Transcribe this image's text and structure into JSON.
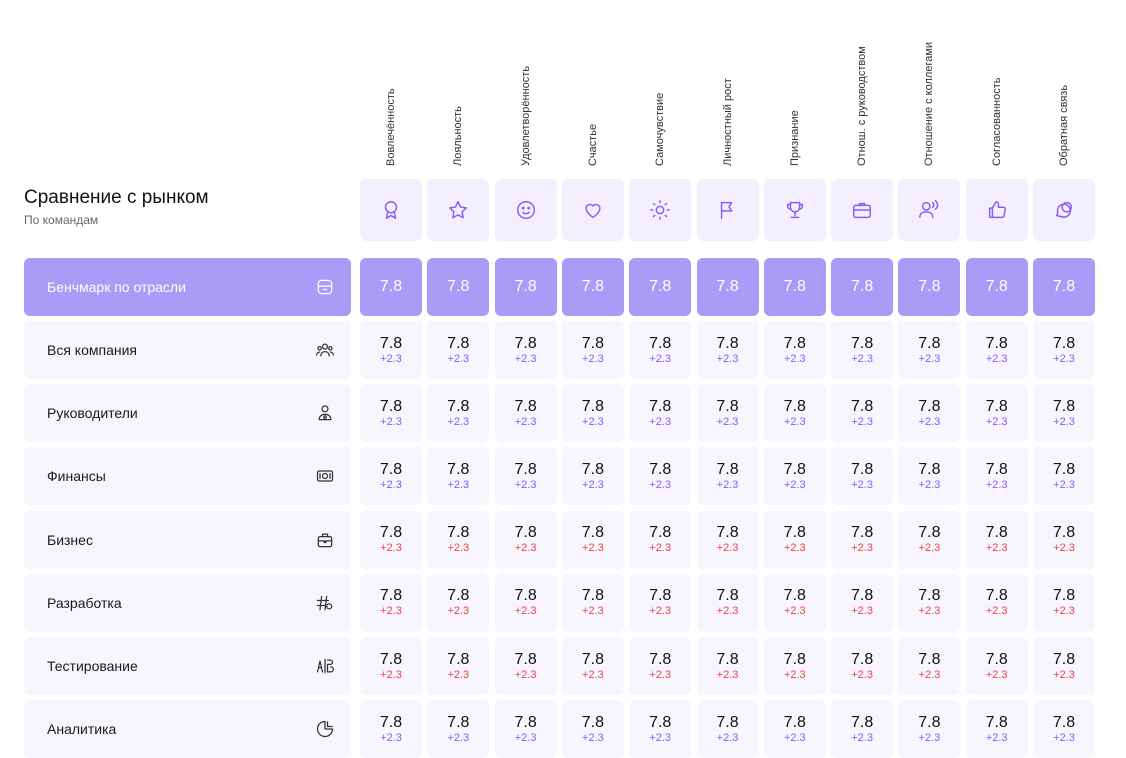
{
  "header": {
    "title": "Сравнение с рынком",
    "subtitle": "По командам"
  },
  "columns": [
    {
      "label": "Вовлечённость",
      "icon": "ribbon-icon"
    },
    {
      "label": "Лояльность",
      "icon": "star-icon"
    },
    {
      "label": "Удовлетворённость",
      "icon": "smile-icon"
    },
    {
      "label": "Счастье",
      "icon": "heart-icon"
    },
    {
      "label": "Самочувствие",
      "icon": "sun-icon"
    },
    {
      "label": "Личностный рост",
      "icon": "flag-icon"
    },
    {
      "label": "Признание",
      "icon": "trophy-icon"
    },
    {
      "label": "Отнош. с руководством",
      "icon": "briefcase-icon"
    },
    {
      "label": "Отношение с коллегами",
      "icon": "people-voice-icon"
    },
    {
      "label": "Согласованность",
      "icon": "thumb-up-icon"
    },
    {
      "label": "Обратная связь",
      "icon": "chat-icon"
    }
  ],
  "benchmark": {
    "label": "Бенчмарк по отрасли",
    "icon": "folder-icon",
    "values": [
      "7.8",
      "7.8",
      "7.8",
      "7.8",
      "7.8",
      "7.8",
      "7.8",
      "7.8",
      "7.8",
      "7.8",
      "7.8"
    ]
  },
  "rows": [
    {
      "label": "Вся компания",
      "icon": "team-icon",
      "value": "7.8",
      "delta": "+2.3",
      "trend": "positive"
    },
    {
      "label": "Руководители",
      "icon": "manager-icon",
      "value": "7.8",
      "delta": "+2.3",
      "trend": "positive"
    },
    {
      "label": "Финансы",
      "icon": "money-icon",
      "value": "7.8",
      "delta": "+2.3",
      "trend": "positive"
    },
    {
      "label": "Бизнес",
      "icon": "bag-icon",
      "value": "7.8",
      "delta": "+2.3",
      "trend": "negative"
    },
    {
      "label": "Разработка",
      "icon": "hash-code-icon",
      "value": "7.8",
      "delta": "+2.3",
      "trend": "negative"
    },
    {
      "label": "Тестирование",
      "icon": "ab-test-icon",
      "value": "7.8",
      "delta": "+2.3",
      "trend": "negative"
    },
    {
      "label": "Аналитика",
      "icon": "pie-chart-icon",
      "value": "7.8",
      "delta": "+2.3",
      "trend": "positive"
    }
  ],
  "colors": {
    "accent": "#8b5cf6",
    "benchmark_bg": "#ab9af6",
    "cell_bg": "#f7f5fd",
    "negative": "#ef4444"
  }
}
